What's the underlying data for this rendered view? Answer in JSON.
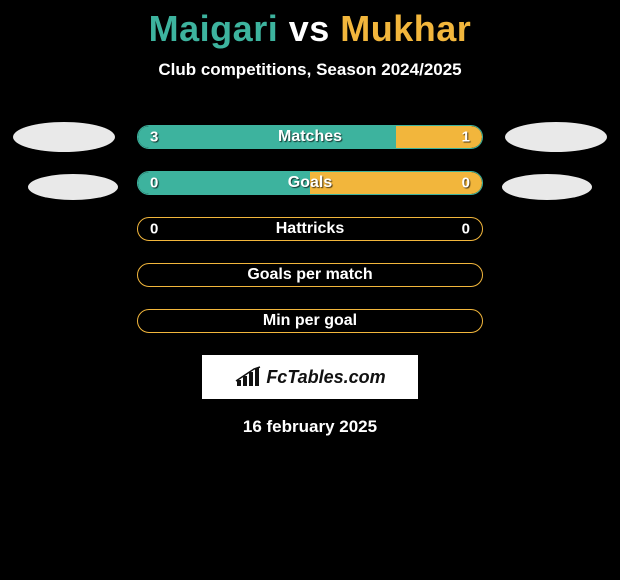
{
  "title": {
    "player1": "Maigari",
    "vs": "vs",
    "player2": "Mukhar"
  },
  "subtitle": "Club competitions, Season 2024/2025",
  "colors": {
    "left": "#3db39e",
    "right": "#f2b63c",
    "ellipse": "#e9e9e9",
    "text": "#ffffff"
  },
  "bars": [
    {
      "label": "Matches",
      "left_value": "3",
      "right_value": "1",
      "left_pct": 75,
      "right_pct": 25,
      "show_values": true,
      "border": "#3db39e"
    },
    {
      "label": "Goals",
      "left_value": "0",
      "right_value": "0",
      "left_pct": 50,
      "right_pct": 50,
      "show_values": true,
      "border": "#3db39e"
    },
    {
      "label": "Hattricks",
      "left_value": "0",
      "right_value": "0",
      "left_pct": 0,
      "right_pct": 0,
      "show_values": true,
      "border": "#f2b63c"
    },
    {
      "label": "Goals per match",
      "left_value": "",
      "right_value": "",
      "left_pct": 0,
      "right_pct": 0,
      "show_values": false,
      "border": "#f2b63c"
    },
    {
      "label": "Min per goal",
      "left_value": "",
      "right_value": "",
      "left_pct": 0,
      "right_pct": 0,
      "show_values": false,
      "border": "#f2b63c"
    }
  ],
  "logo": {
    "text": "FcTables.com"
  },
  "date": "16 february 2025"
}
